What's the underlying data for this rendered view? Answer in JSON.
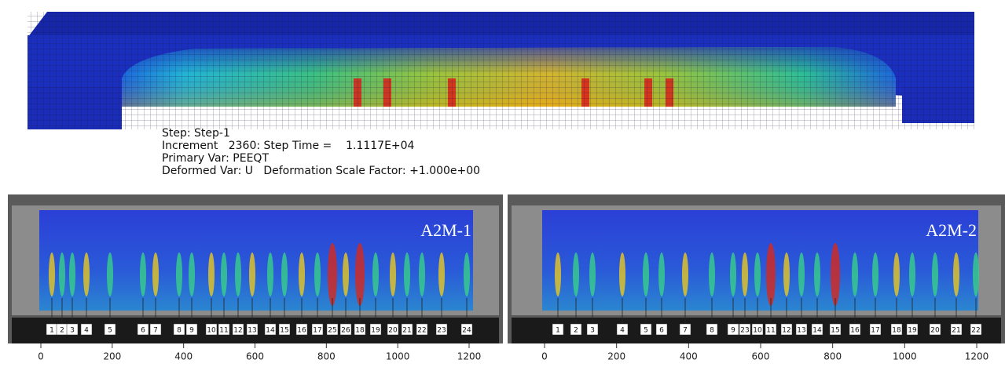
{
  "model": {
    "step": "Step: Step-1",
    "increment": "Increment   2360: Step Time =    1.1117E+04",
    "primary_var": "Primary Var: PEEQT",
    "deformed_var": "Deformed Var: U   Deformation Scale Factor: +1.000e+00"
  },
  "panels": [
    {
      "label": "A2M-1",
      "crack_labels": [
        "1",
        "2",
        "3",
        "4",
        "5",
        "6",
        "7",
        "8",
        "9",
        "10",
        "11",
        "12",
        "13",
        "14",
        "15",
        "16",
        "17",
        "25",
        "26",
        "18",
        "19",
        "20",
        "21",
        "22",
        "23",
        "24"
      ],
      "axis_ticks": [
        0,
        200,
        400,
        600,
        800,
        1000,
        1200
      ]
    },
    {
      "label": "A2M-2",
      "crack_labels": [
        "1",
        "2",
        "3",
        "4",
        "5",
        "6",
        "7",
        "8",
        "9",
        "23",
        "10",
        "11",
        "12",
        "13",
        "14",
        "15",
        "16",
        "17",
        "18",
        "19",
        "20",
        "21",
        "22"
      ],
      "axis_ticks": [
        0,
        200,
        400,
        600,
        800,
        1000,
        1200
      ]
    }
  ]
}
